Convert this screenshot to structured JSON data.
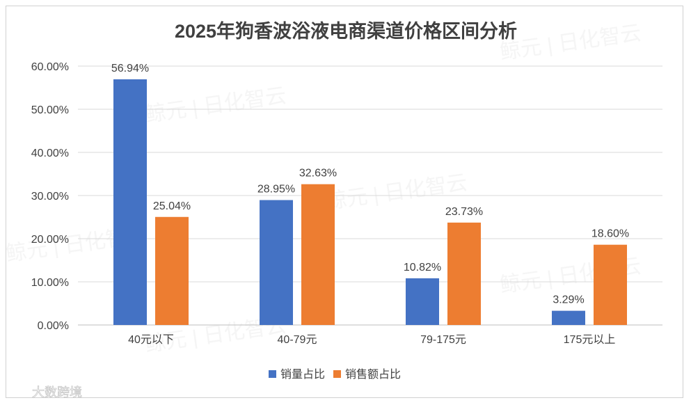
{
  "chart_data": {
    "type": "bar",
    "title": "2025年狗香波浴液电商渠道价格区间分析",
    "categories": [
      "40元以下",
      "40-79元",
      "79-175元",
      "175元以上"
    ],
    "series": [
      {
        "name": "销量占比",
        "color": "#4472C4",
        "values": [
          56.94,
          28.95,
          10.82,
          3.29
        ],
        "labels": [
          "56.94%",
          "28.95%",
          "10.82%",
          "3.29%"
        ]
      },
      {
        "name": "销售额占比",
        "color": "#ED7D31",
        "values": [
          25.04,
          32.63,
          23.73,
          18.6
        ],
        "labels": [
          "25.04%",
          "32.63%",
          "23.73%",
          "18.60%"
        ]
      }
    ],
    "ylim": [
      0,
      60
    ],
    "yticks": [
      0,
      10,
      20,
      30,
      40,
      50,
      60
    ],
    "ytick_labels": [
      "0.00%",
      "10.00%",
      "20.00%",
      "30.00%",
      "40.00%",
      "50.00%",
      "60.00%"
    ],
    "grid": true,
    "legend_position": "bottom"
  },
  "watermark": {
    "brand_text": "鲸元 | 日化智云",
    "source_text": "大数跨境"
  }
}
